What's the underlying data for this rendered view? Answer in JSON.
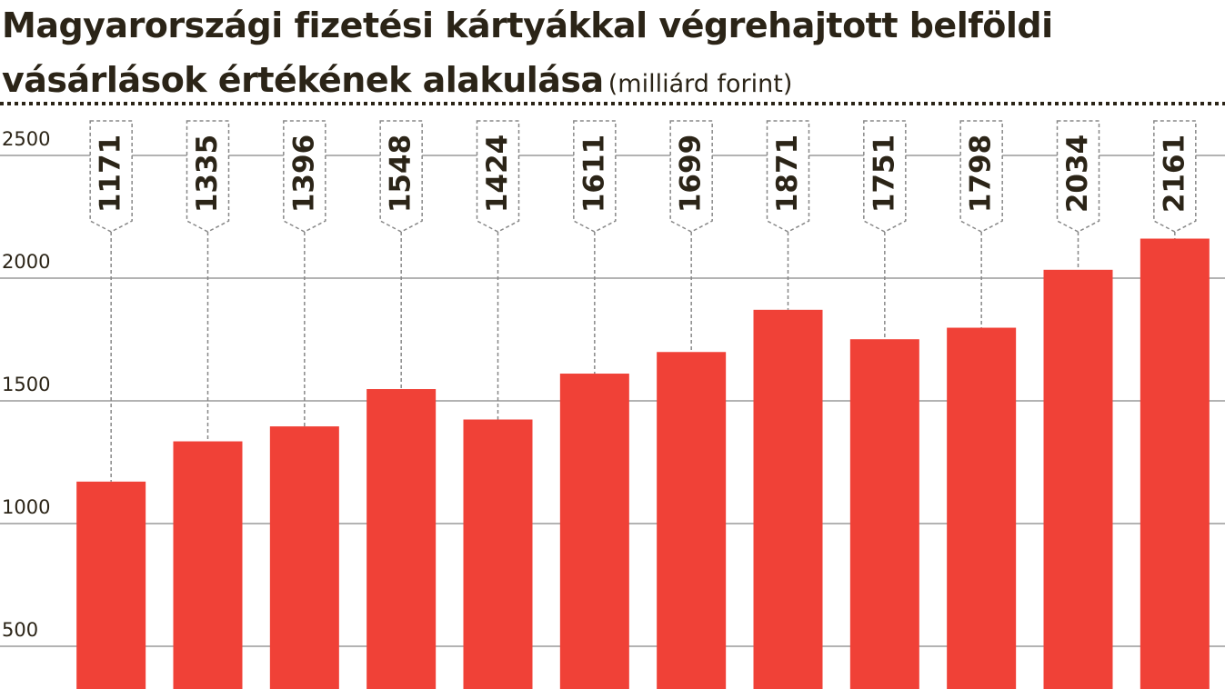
{
  "chart_data": {
    "type": "bar",
    "title": "Magyarországi fizetési kártyákkal végrehajtott belföldi vásárlások értékének alakulása",
    "subtitle": "(milliárd forint)",
    "values": [
      1171,
      1335,
      1396,
      1548,
      1424,
      1611,
      1699,
      1871,
      1751,
      1798,
      2034,
      2161
    ],
    "color": "#f04137",
    "ylim": [
      326,
      2711
    ],
    "yticks": [
      500,
      1000,
      1500,
      2000,
      2500
    ],
    "grid": true
  }
}
